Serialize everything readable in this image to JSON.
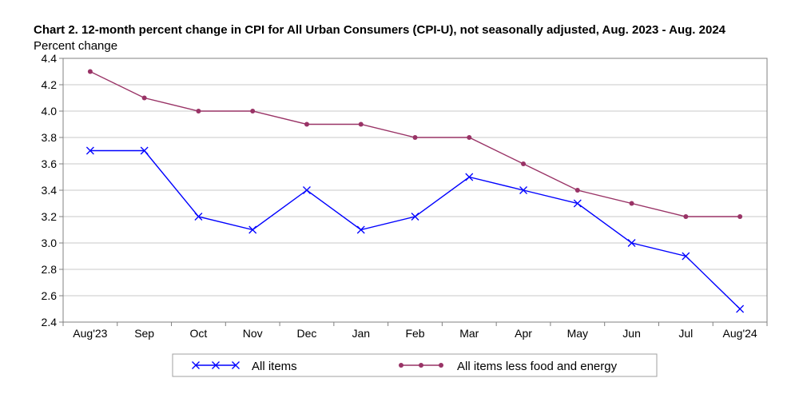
{
  "chart_data": {
    "type": "line",
    "title": "Chart 2. 12-month percent change in CPI for All Urban Consumers (CPI-U), not seasonally adjusted, Aug. 2023 - Aug. 2024",
    "xlabel": "",
    "ylabel": "Percent change",
    "categories": [
      "Aug'23",
      "Sep",
      "Oct",
      "Nov",
      "Dec",
      "Jan",
      "Feb",
      "Mar",
      "Apr",
      "May",
      "Jun",
      "Jul",
      "Aug'24"
    ],
    "ylim": [
      2.4,
      4.4
    ],
    "yticks": [
      "2.4",
      "2.6",
      "2.8",
      "3.0",
      "3.2",
      "3.4",
      "3.6",
      "3.8",
      "4.0",
      "4.2",
      "4.4"
    ],
    "grid": true,
    "legend_position": "bottom",
    "series": [
      {
        "name": "All items",
        "color": "#0000ff",
        "marker": "x",
        "values": [
          3.7,
          3.7,
          3.2,
          3.1,
          3.4,
          3.1,
          3.2,
          3.5,
          3.4,
          3.3,
          3.0,
          2.9,
          2.5
        ]
      },
      {
        "name": "All items less food and energy",
        "color": "#993366",
        "marker": "dot",
        "values": [
          4.3,
          4.1,
          4.0,
          4.0,
          3.9,
          3.9,
          3.8,
          3.8,
          3.6,
          3.4,
          3.3,
          3.2,
          3.2
        ]
      }
    ]
  }
}
